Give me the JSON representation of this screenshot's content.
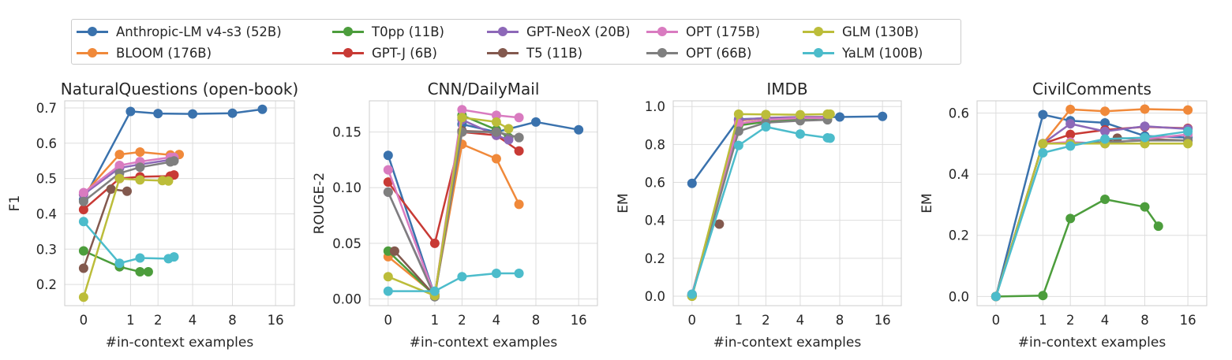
{
  "legend": {
    "items": [
      {
        "name": "Anthropic-LM v4-s3 (52B)",
        "color": "#3a72ad"
      },
      {
        "name": "BLOOM (176B)",
        "color": "#f0893a"
      },
      {
        "name": "T0pp (11B)",
        "color": "#4c9d3c"
      },
      {
        "name": "GPT-J (6B)",
        "color": "#c83a35"
      },
      {
        "name": "GPT-NeoX (20B)",
        "color": "#8d68b8"
      },
      {
        "name": "T5 (11B)",
        "color": "#83594e"
      },
      {
        "name": "OPT (175B)",
        "color": "#d97bc0"
      },
      {
        "name": "OPT (66B)",
        "color": "#7f7f7f"
      },
      {
        "name": "GLM (130B)",
        "color": "#bcbd3a"
      },
      {
        "name": "YaLM (100B)",
        "color": "#4cbccb"
      }
    ]
  },
  "chart_data": [
    {
      "type": "line",
      "title": "NaturalQuestions (open-book)",
      "xlabel": "#in-context examples",
      "ylabel": "F1",
      "x_scale": "log2_plus_one",
      "x_ticks": [
        0,
        1,
        2,
        4,
        8,
        16
      ],
      "x_tick_labels": [
        "0",
        "1",
        "2",
        "4",
        "8",
        "16"
      ],
      "ylim": [
        0.14,
        0.72
      ],
      "y_ticks": [
        0.2,
        0.3,
        0.4,
        0.5,
        0.6,
        0.7
      ],
      "y_tick_labels": [
        "0.2",
        "0.3",
        "0.4",
        "0.5",
        "0.6",
        "0.7"
      ],
      "grid": true,
      "series": [
        {
          "name": "Anthropic-LM v4-s3 (52B)",
          "x": [
            0,
            1,
            2,
            4,
            8,
            13
          ],
          "y": [
            0.44,
            0.69,
            0.684,
            0.683,
            0.685,
            0.696
          ]
        },
        {
          "name": "BLOOM (176B)",
          "x": [
            0,
            0.7,
            1.3,
            2.6,
            3.1
          ],
          "y": [
            0.455,
            0.568,
            0.575,
            0.567,
            0.568
          ]
        },
        {
          "name": "T0pp (11B)",
          "x": [
            0,
            0.7,
            1.3,
            1.6
          ],
          "y": [
            0.295,
            0.25,
            0.236,
            0.236
          ]
        },
        {
          "name": "GPT-J (6B)",
          "x": [
            0,
            0.7,
            1.3,
            2.6,
            2.8
          ],
          "y": [
            0.412,
            0.5,
            0.505,
            0.507,
            0.51
          ]
        },
        {
          "name": "GPT-NeoX (20B)",
          "x": [
            0,
            0.7,
            1.3,
            2.6,
            2.8
          ],
          "y": [
            0.455,
            0.53,
            0.54,
            0.553,
            0.553
          ]
        },
        {
          "name": "T5 (11B)",
          "x": [
            0,
            0.5,
            0.9
          ],
          "y": [
            0.246,
            0.47,
            0.464
          ]
        },
        {
          "name": "OPT (175B)",
          "x": [
            0,
            0.7,
            1.3,
            2.6,
            2.8
          ],
          "y": [
            0.46,
            0.537,
            0.548,
            0.56,
            0.56
          ]
        },
        {
          "name": "OPT (66B)",
          "x": [
            0,
            0.7,
            1.3,
            2.6,
            2.8
          ],
          "y": [
            0.435,
            0.515,
            0.532,
            0.547,
            0.55
          ]
        },
        {
          "name": "GLM (130B)",
          "x": [
            0,
            0.7,
            1.3,
            2.2,
            2.5
          ],
          "y": [
            0.164,
            0.5,
            0.496,
            0.494,
            0.493
          ]
        },
        {
          "name": "YaLM (100B)",
          "x": [
            0,
            0.7,
            1.3,
            2.5,
            2.8
          ],
          "y": [
            0.378,
            0.26,
            0.275,
            0.273,
            0.278
          ]
        }
      ]
    },
    {
      "type": "line",
      "title": "CNN/DailyMail",
      "xlabel": "#in-context examples",
      "ylabel": "ROUGE-2",
      "x_scale": "log2_plus_one",
      "x_ticks": [
        0,
        1,
        2,
        4,
        8,
        16
      ],
      "x_tick_labels": [
        "0",
        "1",
        "2",
        "4",
        "8",
        "16"
      ],
      "ylim": [
        -0.006,
        0.178
      ],
      "y_ticks": [
        0.0,
        0.05,
        0.1,
        0.15
      ],
      "y_tick_labels": [
        "0.00",
        "0.05",
        "0.10",
        "0.15"
      ],
      "grid": true,
      "series": [
        {
          "name": "Anthropic-LM v4-s3 (52B)",
          "x": [
            0,
            1,
            2,
            4,
            8,
            16
          ],
          "y": [
            0.129,
            0.003,
            0.157,
            0.15,
            0.159,
            0.152
          ]
        },
        {
          "name": "BLOOM (176B)",
          "x": [
            0,
            1,
            2,
            4,
            6
          ],
          "y": [
            0.038,
            0.004,
            0.139,
            0.126,
            0.085
          ]
        },
        {
          "name": "T0pp (11B)",
          "x": [
            0,
            1,
            2,
            4,
            5
          ],
          "y": [
            0.043,
            0.003,
            0.165,
            0.152,
            0.145
          ]
        },
        {
          "name": "GPT-J (6B)",
          "x": [
            0,
            1,
            2,
            4,
            6
          ],
          "y": [
            0.105,
            0.05,
            0.15,
            0.147,
            0.133
          ]
        },
        {
          "name": "GPT-NeoX (20B)",
          "x": [
            0,
            1,
            2,
            4,
            5
          ],
          "y": [
            0.096,
            0.003,
            0.161,
            0.147,
            0.143
          ]
        },
        {
          "name": "T5 (11B)",
          "x": [
            0.1,
            1,
            2,
            4,
            6
          ],
          "y": [
            0.043,
            0.003,
            0.151,
            0.15,
            0.145
          ]
        },
        {
          "name": "OPT (175B)",
          "x": [
            0,
            1,
            2,
            4,
            6
          ],
          "y": [
            0.116,
            0.003,
            0.17,
            0.165,
            0.163
          ]
        },
        {
          "name": "OPT (66B)",
          "x": [
            0,
            1,
            2,
            4,
            6
          ],
          "y": [
            0.096,
            0.002,
            0.15,
            0.15,
            0.145
          ]
        },
        {
          "name": "GLM (130B)",
          "x": [
            0,
            1,
            2,
            4,
            5
          ],
          "y": [
            0.02,
            0.003,
            0.163,
            0.159,
            0.153
          ]
        },
        {
          "name": "YaLM (100B)",
          "x": [
            0,
            1,
            2,
            4,
            6
          ],
          "y": [
            0.007,
            0.007,
            0.02,
            0.023,
            0.023
          ]
        }
      ]
    },
    {
      "type": "line",
      "title": "IMDB",
      "xlabel": "#in-context examples",
      "ylabel": "EM",
      "x_scale": "log2_plus_one",
      "x_ticks": [
        0,
        1,
        2,
        4,
        8,
        16
      ],
      "x_tick_labels": [
        "0",
        "1",
        "2",
        "4",
        "8",
        "16"
      ],
      "ylim": [
        -0.05,
        1.03
      ],
      "y_ticks": [
        0.0,
        0.2,
        0.4,
        0.6,
        0.8,
        1.0
      ],
      "y_tick_labels": [
        "0.0",
        "0.2",
        "0.4",
        "0.6",
        "0.8",
        "1.0"
      ],
      "grid": true,
      "series": [
        {
          "name": "Anthropic-LM v4-s3 (52B)",
          "x": [
            0,
            1,
            2,
            4,
            8,
            16
          ],
          "y": [
            0.595,
            0.933,
            0.938,
            0.942,
            0.945,
            0.948
          ]
        },
        {
          "name": "BLOOM (176B)",
          "x": [
            0,
            1,
            2,
            4,
            6.5
          ],
          "y": [
            0.0,
            0.925,
            0.94,
            0.945,
            0.945
          ]
        },
        {
          "name": "T0pp (11B)",
          "x": [
            0,
            1,
            2,
            4,
            6.5
          ],
          "y": [
            0.0,
            0.9,
            0.92,
            0.935,
            0.94
          ]
        },
        {
          "name": "GPT-J (6B)",
          "x": [
            0,
            1,
            2,
            4,
            6.5
          ],
          "y": [
            0.005,
            0.91,
            0.93,
            0.94,
            0.945
          ]
        },
        {
          "name": "GPT-NeoX (20B)",
          "x": [
            0,
            1,
            2,
            4,
            6.5
          ],
          "y": [
            0.01,
            0.93,
            0.94,
            0.945,
            0.945
          ]
        },
        {
          "name": "T5 (11B)",
          "x": [
            0.5
          ],
          "y": [
            0.38
          ]
        },
        {
          "name": "OPT (175B)",
          "x": [
            0,
            1,
            2,
            4,
            6.5
          ],
          "y": [
            0.01,
            0.91,
            0.93,
            0.94,
            0.94
          ]
        },
        {
          "name": "OPT (66B)",
          "x": [
            0,
            1,
            2,
            4,
            6.5
          ],
          "y": [
            0.005,
            0.87,
            0.915,
            0.925,
            0.93
          ]
        },
        {
          "name": "GLM (130B)",
          "x": [
            0,
            1,
            2,
            4,
            6.5,
            6.8
          ],
          "y": [
            0.0,
            0.96,
            0.958,
            0.957,
            0.96,
            0.96
          ]
        },
        {
          "name": "YaLM (100B)",
          "x": [
            0,
            1,
            2,
            4,
            6.5,
            6.8
          ],
          "y": [
            0.01,
            0.795,
            0.893,
            0.855,
            0.835,
            0.833
          ]
        }
      ]
    },
    {
      "type": "line",
      "title": "CivilComments",
      "xlabel": "#in-context examples",
      "ylabel": "EM",
      "x_scale": "log2_plus_one",
      "x_ticks": [
        0,
        1,
        2,
        4,
        8,
        16
      ],
      "x_tick_labels": [
        "0",
        "1",
        "2",
        "4",
        "8",
        "16"
      ],
      "ylim": [
        -0.03,
        0.64
      ],
      "y_ticks": [
        0.0,
        0.2,
        0.4,
        0.6
      ],
      "y_tick_labels": [
        "0.0",
        "0.2",
        "0.4",
        "0.6"
      ],
      "grid": true,
      "series": [
        {
          "name": "Anthropic-LM v4-s3 (52B)",
          "x": [
            0,
            1,
            2,
            4,
            8,
            16
          ],
          "y": [
            0.0,
            0.595,
            0.575,
            0.568,
            0.525,
            0.52
          ]
        },
        {
          "name": "BLOOM (176B)",
          "x": [
            0,
            1,
            2,
            4,
            8,
            16
          ],
          "y": [
            0.0,
            0.5,
            0.612,
            0.606,
            0.613,
            0.61
          ]
        },
        {
          "name": "T0pp (11B)",
          "x": [
            0,
            1,
            2,
            4,
            8,
            10
          ],
          "y": [
            0.0,
            0.003,
            0.255,
            0.318,
            0.293,
            0.23
          ]
        },
        {
          "name": "GPT-J (6B)",
          "x": [
            0,
            1,
            2,
            4,
            8,
            16
          ],
          "y": [
            0.0,
            0.5,
            0.53,
            0.545,
            0.555,
            0.55
          ]
        },
        {
          "name": "GPT-NeoX (20B)",
          "x": [
            0,
            1,
            2,
            4,
            8,
            16
          ],
          "y": [
            0.0,
            0.5,
            0.565,
            0.54,
            0.557,
            0.548
          ]
        },
        {
          "name": "T5 (11B)",
          "x": [
            0,
            1,
            2,
            4,
            5,
            8,
            16
          ],
          "y": [
            0.0,
            0.5,
            0.5,
            0.505,
            0.518,
            0.515,
            0.51
          ]
        },
        {
          "name": "OPT (175B)",
          "x": [
            0,
            1,
            2,
            4,
            8,
            16
          ],
          "y": [
            0.0,
            0.5,
            0.505,
            0.5,
            0.515,
            0.53
          ]
        },
        {
          "name": "OPT (66B)",
          "x": [
            0,
            1,
            2,
            4,
            8,
            16
          ],
          "y": [
            0.0,
            0.5,
            0.5,
            0.505,
            0.51,
            0.51
          ]
        },
        {
          "name": "GLM (130B)",
          "x": [
            0,
            1,
            2,
            4,
            8,
            16
          ],
          "y": [
            0.0,
            0.5,
            0.5,
            0.5,
            0.5,
            0.5
          ]
        },
        {
          "name": "YaLM (100B)",
          "x": [
            0,
            1,
            2,
            4,
            8,
            16
          ],
          "y": [
            0.0,
            0.47,
            0.492,
            0.515,
            0.52,
            0.54
          ]
        }
      ]
    }
  ]
}
